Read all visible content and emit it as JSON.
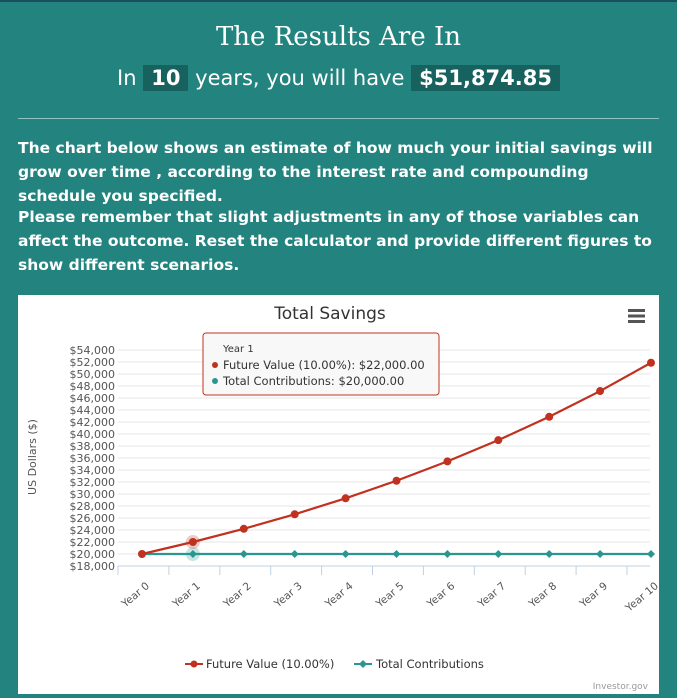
{
  "header": {
    "title": "The Results Are In",
    "prefix": "In",
    "years": "10",
    "middle": "years, you will have",
    "amount": "$51,874.85"
  },
  "paragraphs": [
    "The chart below shows an estimate of how much your initial savings will grow over time , according to the interest rate and compounding schedule you specified.",
    "Please remember that slight adjustments in any of those variables can affect the outcome. Reset the calculator and provide different figures to show different scenarios."
  ],
  "chart_data": {
    "type": "line",
    "title": "Total Savings",
    "ylabel": "US Dollars ($)",
    "xlabel": "",
    "ylim": [
      18000,
      54000
    ],
    "categories": [
      "Year 0",
      "Year 1",
      "Year 2",
      "Year 3",
      "Year 4",
      "Year 5",
      "Year 6",
      "Year 7",
      "Year 8",
      "Year 9",
      "Year 10"
    ],
    "yticks": [
      "$18,000",
      "$20,000",
      "$22,000",
      "$24,000",
      "$26,000",
      "$28,000",
      "$30,000",
      "$32,000",
      "$34,000",
      "$36,000",
      "$38,000",
      "$40,000",
      "$42,000",
      "$44,000",
      "$46,000",
      "$48,000",
      "$50,000",
      "$52,000",
      "$54,000"
    ],
    "series": [
      {
        "name": "Future Value (10.00%)",
        "color": "#c0311f",
        "values": [
          20000,
          22000,
          24200,
          26620,
          29282,
          32210.2,
          35431.22,
          38974.34,
          42871.78,
          47158.95,
          51874.85
        ]
      },
      {
        "name": "Total Contributions",
        "color": "#2a9690",
        "values": [
          20000,
          20000,
          20000,
          20000,
          20000,
          20000,
          20000,
          20000,
          20000,
          20000,
          20000
        ]
      }
    ],
    "legend": "bottom",
    "grid": true,
    "tooltip": {
      "title": "Year 1",
      "line1": "Future Value (10.00%): $22,000.00",
      "line2": "Total Contributions: $20,000.00"
    },
    "credit": "Investor.gov"
  }
}
